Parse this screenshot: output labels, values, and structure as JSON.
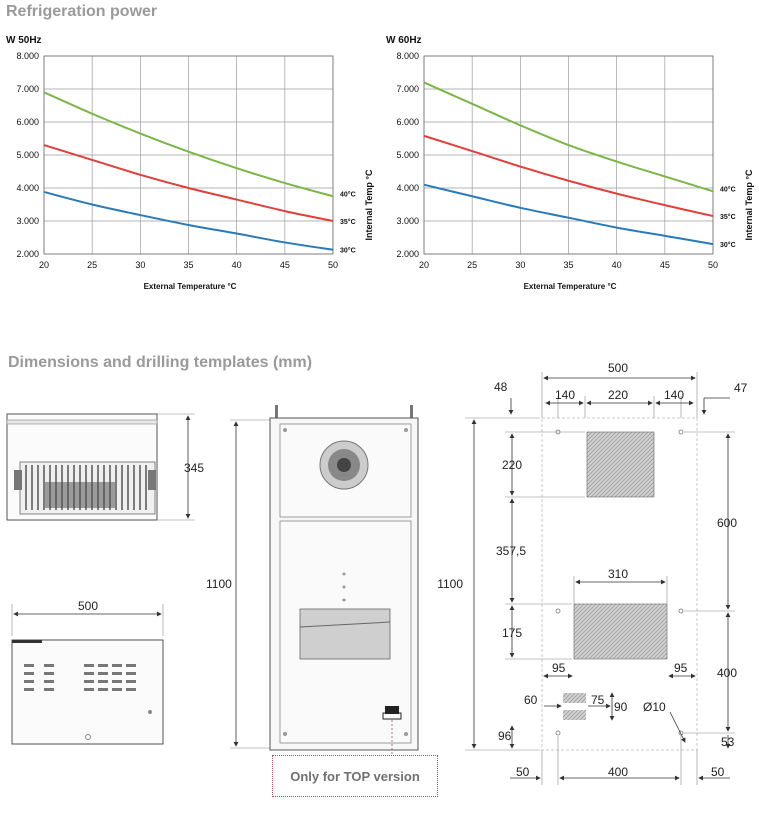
{
  "sections": {
    "refrigeration_title": "Refrigeration power",
    "dimensions_title": "Dimensions and drilling templates (mm)"
  },
  "chart_data": [
    {
      "type": "line",
      "title": "W  50Hz",
      "xlabel": "External Temperature °C",
      "ylabel": "Internal Temp °C",
      "x": [
        20,
        25,
        30,
        35,
        40,
        45,
        50
      ],
      "xticks": [
        "20",
        "25",
        "30",
        "35",
        "40",
        "45",
        "50"
      ],
      "yticks": [
        "2.000",
        "3.000",
        "4.000",
        "5.000",
        "6.000",
        "7.000",
        "8.000"
      ],
      "xlim": [
        20,
        50
      ],
      "ylim": [
        2000,
        8000
      ],
      "grid": true,
      "series": [
        {
          "name": "40°C",
          "color": "#7ab648",
          "values": [
            6900,
            6250,
            5650,
            5100,
            4600,
            4150,
            3750
          ]
        },
        {
          "name": "35°C",
          "color": "#e0403a",
          "values": [
            5300,
            4850,
            4400,
            4000,
            3650,
            3300,
            3000
          ]
        },
        {
          "name": "30°C",
          "color": "#2a7ab8",
          "values": [
            3880,
            3500,
            3180,
            2880,
            2620,
            2350,
            2130
          ]
        }
      ]
    },
    {
      "type": "line",
      "title": "W  60Hz",
      "xlabel": "External Temperature °C",
      "ylabel": "Internal Temp °C",
      "x": [
        20,
        25,
        30,
        35,
        40,
        45,
        50
      ],
      "xticks": [
        "20",
        "25",
        "30",
        "35",
        "40",
        "45",
        "50"
      ],
      "yticks": [
        "2.000",
        "3.000",
        "4.000",
        "5.000",
        "6.000",
        "7.000",
        "8.000"
      ],
      "xlim": [
        20,
        50
      ],
      "ylim": [
        2000,
        8000
      ],
      "grid": true,
      "series": [
        {
          "name": "40°C",
          "color": "#7ab648",
          "values": [
            7200,
            6550,
            5900,
            5300,
            4800,
            4350,
            3900
          ]
        },
        {
          "name": "35°C",
          "color": "#e0403a",
          "values": [
            5580,
            5120,
            4650,
            4220,
            3830,
            3480,
            3150
          ]
        },
        {
          "name": "30°C",
          "color": "#2a7ab8",
          "values": [
            4100,
            3750,
            3400,
            3100,
            2800,
            2550,
            2300
          ]
        }
      ]
    }
  ],
  "dimensions": {
    "side_height": "345",
    "top_width": "500",
    "front_height": "1100",
    "template_height": "1100",
    "top_overall_width": "500",
    "margin_left": "48",
    "margin_right": "47",
    "seg_140_left": "140",
    "seg_220": "220",
    "seg_140_right": "140",
    "upper_cutout_height": "220",
    "gap_357": "357,5",
    "dim_600": "600",
    "lower_cutout_width": "310",
    "lower_cutout_height": "175",
    "dim_95_left": "95",
    "dim_95_right": "95",
    "dim_400_right": "400",
    "dim_60": "60",
    "dim_75": "75",
    "dim_90": "90",
    "hole_diameter": "Ø10",
    "dim_96": "96",
    "dim_53": "53",
    "bottom_50_left": "50",
    "bottom_400": "400",
    "bottom_50_right": "50"
  },
  "note": "Only for TOP version"
}
